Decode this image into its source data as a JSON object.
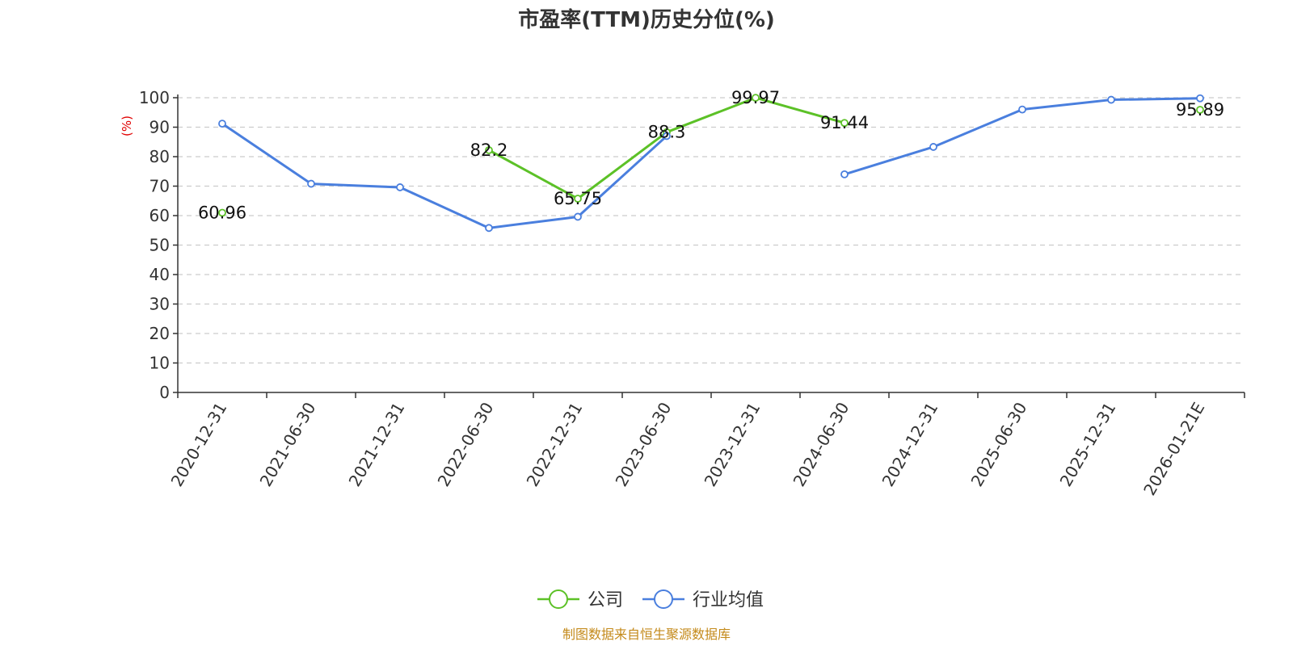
{
  "chart_data": {
    "type": "line",
    "title": "市盈率(TTM)历史分位(%)",
    "ylabel": "(%)",
    "ylim": [
      0,
      100
    ],
    "yticks": [
      0,
      10,
      20,
      30,
      40,
      50,
      60,
      70,
      80,
      90,
      100
    ],
    "categories": [
      "2020-12-31",
      "2021-06-30",
      "2021-12-31",
      "2022-06-30",
      "2022-12-31",
      "2023-06-30",
      "2023-12-31",
      "2024-06-30",
      "2024-12-31",
      "2025-06-30",
      "2025-12-31",
      "2026-01-21E"
    ],
    "series": [
      {
        "name": "公司",
        "color": "#5cc127",
        "values": [
          60.96,
          null,
          null,
          82.2,
          65.75,
          88.3,
          99.97,
          91.44,
          null,
          null,
          null,
          95.89
        ],
        "labels": [
          "60.96",
          "",
          "",
          "82.2",
          "65.75",
          "88.3",
          "99.97",
          "91.44",
          "",
          "",
          "",
          "95.89"
        ]
      },
      {
        "name": "行业均值",
        "color": "#4a7fde",
        "values": [
          91.2,
          70.8,
          69.6,
          55.8,
          59.6,
          87.0,
          null,
          74.0,
          83.3,
          96.0,
          99.3,
          99.8
        ]
      }
    ],
    "grid": true,
    "legend_position": "bottom-center"
  },
  "footer": {
    "source": "制图数据来自恒生聚源数据库",
    "source_color": "#c48a1b"
  },
  "colors": {
    "ylabel": "#e00000",
    "axis": "#333333",
    "grid": "#cccccc"
  }
}
